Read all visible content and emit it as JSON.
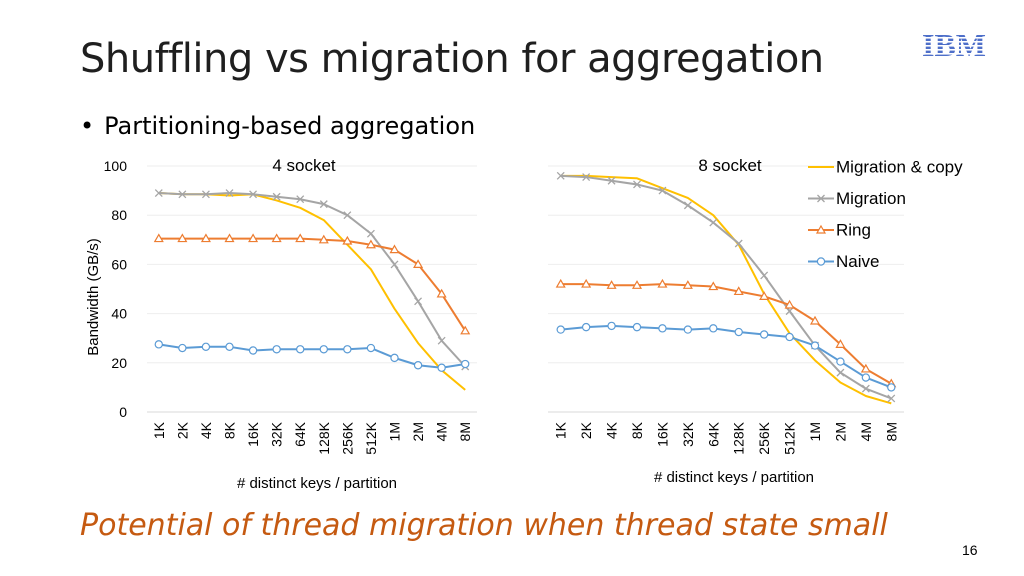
{
  "slide": {
    "title": "Shuffling vs migration for aggregation",
    "bullet": "Partitioning-based aggregation",
    "caption": "Potential of thread migration when thread state small",
    "page_number": "16",
    "logo_text": "IBM"
  },
  "colors": {
    "migration_copy": "#FFC000",
    "migration": "#A5A5A5",
    "ring": "#ED7D31",
    "naive": "#5B9BD5",
    "caption": "#C55A11",
    "logo": "#4E6FC9"
  },
  "chart_data": [
    {
      "type": "line",
      "title": "4 socket",
      "xlabel": "# distinct keys / partition",
      "ylabel": "Bandwidth (GB/s)",
      "ylim": [
        0,
        100
      ],
      "yticks": [
        "0",
        "20",
        "40",
        "60",
        "80",
        "100"
      ],
      "grid": true,
      "categories": [
        "1K",
        "2K",
        "4K",
        "8K",
        "16K",
        "32K",
        "64K",
        "128K",
        "256K",
        "512K",
        "1M",
        "2M",
        "4M",
        "8M"
      ],
      "series": [
        {
          "name": "Migration & copy",
          "values": [
            89,
            88.5,
            88.5,
            88,
            88.5,
            86,
            83,
            78,
            68,
            58,
            42,
            28,
            17,
            9
          ]
        },
        {
          "name": "Migration",
          "values": [
            89,
            88.5,
            88.5,
            89,
            88.5,
            87.5,
            86.5,
            84.5,
            80,
            72.5,
            60,
            45,
            29,
            18.5
          ]
        },
        {
          "name": "Ring",
          "values": [
            70.5,
            70.5,
            70.5,
            70.5,
            70.5,
            70.5,
            70.5,
            70,
            69.5,
            68,
            66,
            60,
            48,
            33
          ]
        },
        {
          "name": "Naive",
          "values": [
            27.5,
            26,
            26.5,
            26.5,
            25,
            25.5,
            25.5,
            25.5,
            25.5,
            26,
            22,
            19,
            18,
            19.5
          ]
        }
      ]
    },
    {
      "type": "line",
      "title": "8 socket",
      "xlabel": "# distinct keys / partition",
      "ylim": [
        0,
        100
      ],
      "grid": true,
      "legend": "top-right",
      "categories": [
        "1K",
        "2K",
        "4K",
        "8K",
        "16K",
        "32K",
        "64K",
        "128K",
        "256K",
        "512K",
        "1M",
        "2M",
        "4M",
        "8M"
      ],
      "series": [
        {
          "name": "Migration & copy",
          "values": [
            96,
            96,
            95.5,
            95,
            91,
            87,
            80,
            68,
            48,
            32,
            21,
            12,
            6.5,
            3.5
          ]
        },
        {
          "name": "Migration",
          "values": [
            96,
            95.5,
            94,
            92.5,
            90,
            84,
            77,
            68.5,
            55.5,
            41,
            27,
            16,
            9.5,
            5.5
          ]
        },
        {
          "name": "Ring",
          "values": [
            52,
            52,
            51.5,
            51.5,
            52,
            51.5,
            51,
            49,
            47,
            43.5,
            37,
            27.5,
            17.5,
            11.5
          ]
        },
        {
          "name": "Naive",
          "values": [
            33.5,
            34.5,
            35,
            34.5,
            34,
            33.5,
            34,
            32.5,
            31.5,
            30.5,
            27,
            20.5,
            14,
            10
          ]
        }
      ]
    }
  ]
}
